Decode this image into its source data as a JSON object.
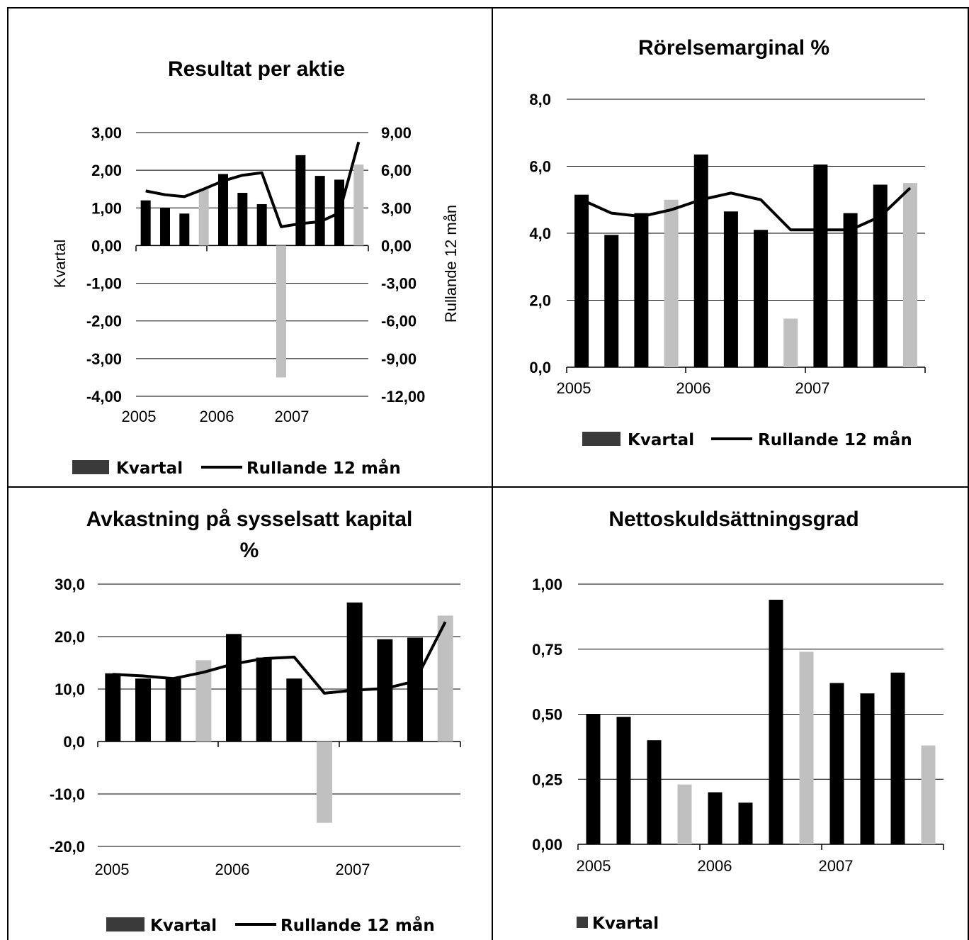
{
  "colors": {
    "kvartal": "#000000",
    "highlight": "#c0c0c0",
    "legend_box": "#3a3a3a",
    "line": "#000000",
    "grid": "#000000"
  },
  "chart_data": [
    {
      "type": "bar",
      "title": "Resultat per aktie",
      "categories": [
        "",
        "",
        "",
        "",
        "",
        "",
        "",
        "",
        "",
        "",
        "",
        ""
      ],
      "x_labels": [
        "2005",
        "2006",
        "2007"
      ],
      "series": [
        {
          "name": "Kvartal",
          "values": [
            1.2,
            1.0,
            0.85,
            1.5,
            1.9,
            1.4,
            1.1,
            -3.5,
            2.4,
            1.85,
            1.75,
            2.15
          ],
          "highlight": [
            3,
            7,
            11
          ]
        },
        {
          "name": "Rullande 12 mån",
          "type": "line",
          "axis": "right",
          "values": [
            4.35,
            4.05,
            3.9,
            4.5,
            5.15,
            5.6,
            5.8,
            1.5,
            1.75,
            1.9,
            2.6,
            8.25
          ]
        }
      ],
      "ylabel": "Kvartal",
      "y2label": "Rullande 12 mån",
      "ylim": [
        -4,
        3
      ],
      "y2lim": [
        -12,
        9
      ],
      "yticks": [
        "3,00",
        "2,00",
        "1,00",
        "0,00",
        "-1,00",
        "-2,00",
        "-3,00",
        "-4,00"
      ],
      "y2ticks": [
        "9,00",
        "6,00",
        "3,00",
        "0,00",
        "-3,00",
        "-6,00",
        "-9,00",
        "-12,00"
      ],
      "legend": [
        "Kvartal",
        "Rullande 12 mån"
      ],
      "legend_position": "bottom",
      "grid": true
    },
    {
      "type": "bar",
      "title": "Rörelsemarginal %",
      "categories": [
        "",
        "",
        "",
        "",
        "",
        "",
        "",
        "",
        "",
        "",
        "",
        ""
      ],
      "x_labels": [
        "2005",
        "2006",
        "2007"
      ],
      "series": [
        {
          "name": "Kvartal",
          "values": [
            5.15,
            3.95,
            4.6,
            5.0,
            6.35,
            4.65,
            4.1,
            1.45,
            6.05,
            4.6,
            5.45,
            5.5
          ],
          "highlight": [
            3,
            7,
            11
          ]
        },
        {
          "name": "Rullande 12 mån",
          "type": "line",
          "values": [
            5.0,
            4.6,
            4.5,
            4.7,
            5.0,
            5.2,
            5.0,
            4.1,
            4.1,
            4.1,
            4.5,
            5.35
          ]
        }
      ],
      "ylim": [
        0,
        8
      ],
      "yticks": [
        "8,0",
        "6,0",
        "4,0",
        "2,0",
        "0,0"
      ],
      "legend": [
        "Kvartal",
        "Rullande 12 mån"
      ],
      "legend_position": "bottom",
      "grid": true
    },
    {
      "type": "bar",
      "title": "Avkastning på sysselsatt kapital %",
      "title_lines": [
        "Avkastning på sysselsatt kapital",
        "%"
      ],
      "categories": [
        "",
        "",
        "",
        "",
        "",
        "",
        "",
        "",
        "",
        "",
        "",
        ""
      ],
      "x_labels": [
        "2005",
        "2006",
        "2007"
      ],
      "series": [
        {
          "name": "Kvartal",
          "values": [
            13.0,
            12.0,
            12.0,
            15.5,
            20.5,
            16.0,
            12.0,
            -15.5,
            26.5,
            19.5,
            19.8,
            24.0
          ],
          "highlight": [
            3,
            7,
            11
          ]
        },
        {
          "name": "Rullande 12 mån",
          "type": "line",
          "values": [
            12.8,
            12.5,
            12.0,
            13.2,
            14.8,
            15.8,
            16.1,
            9.2,
            9.8,
            10.1,
            11.5,
            22.8
          ]
        }
      ],
      "ylim": [
        -20,
        30
      ],
      "yticks": [
        "30,0",
        "20,0",
        "10,0",
        "0,0",
        "-10,0",
        "-20,0"
      ],
      "legend": [
        "Kvartal",
        "Rullande 12 mån"
      ],
      "legend_position": "bottom",
      "grid": true
    },
    {
      "type": "bar",
      "title": "Nettoskuldsättningsgrad",
      "categories": [
        "",
        "",
        "",
        "",
        "",
        "",
        "",
        "",
        "",
        "",
        "",
        ""
      ],
      "x_labels": [
        "2005",
        "2006",
        "2007"
      ],
      "series": [
        {
          "name": "Kvartal",
          "values": [
            0.5,
            0.49,
            0.4,
            0.23,
            0.2,
            0.16,
            0.94,
            0.74,
            0.62,
            0.58,
            0.66,
            0.38
          ],
          "highlight": [
            3,
            7,
            11
          ]
        }
      ],
      "ylim": [
        0,
        1
      ],
      "yticks": [
        "1,00",
        "0,75",
        "0,50",
        "0,25",
        "0,00"
      ],
      "legend": [
        "Kvartal"
      ],
      "legend_position": "bottom-left",
      "grid": true
    }
  ]
}
